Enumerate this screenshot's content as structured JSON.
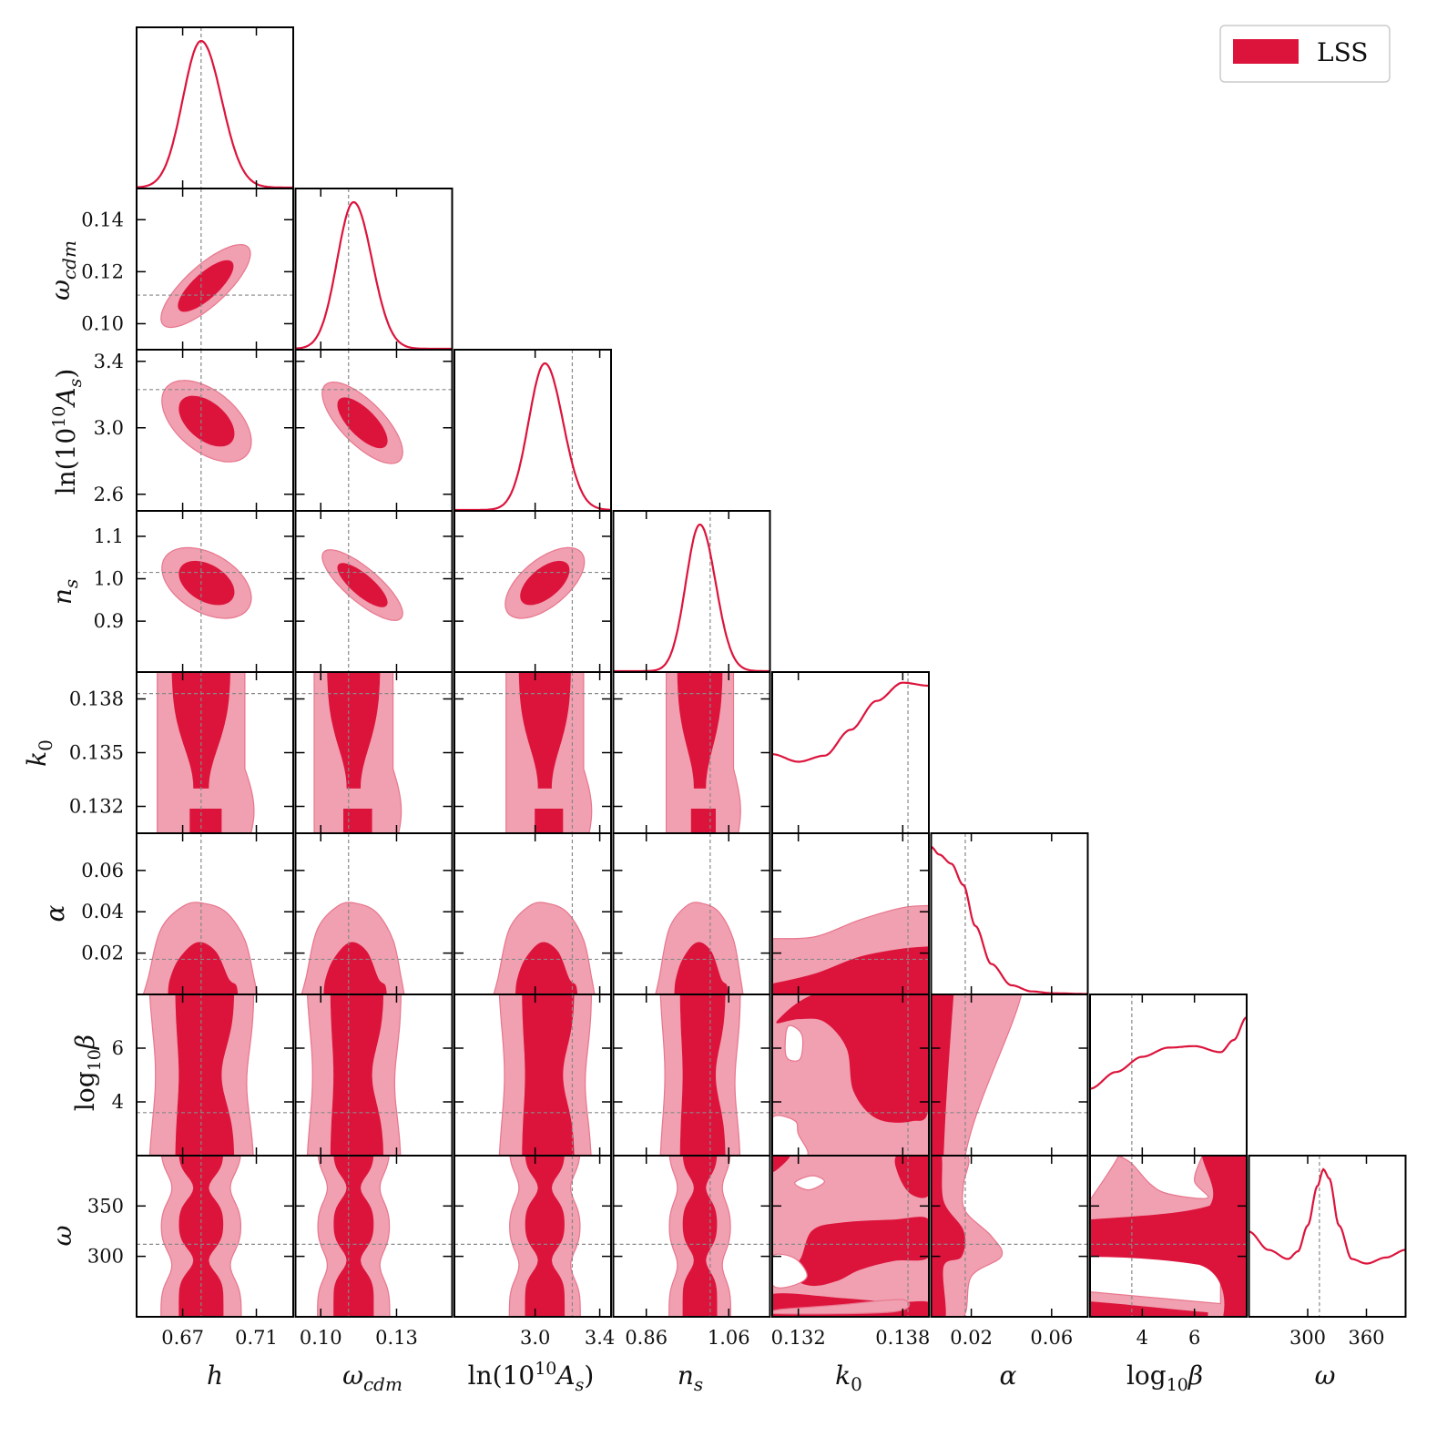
{
  "chart_data": {
    "type": "corner",
    "title": "",
    "legend": {
      "label": "LSS",
      "color": "#dc143c",
      "placement": "top-right"
    },
    "colors": {
      "c68": "#dc143c",
      "c95": "#f0a0b0",
      "c95_edge": "#e8768e",
      "line": "#dc143c",
      "ref": "#888888"
    },
    "parameters": [
      {
        "name": "h",
        "label": "h",
        "range": [
          0.645,
          0.73
        ],
        "ticks": [
          0.67,
          0.71
        ],
        "tick_labels": [
          "0.67",
          "0.71"
        ],
        "ref": 0.68,
        "mean": 0.68,
        "sd": 0.0099,
        "peak": 0.68
      },
      {
        "name": "omega_cdm",
        "label": "ω_cdm",
        "range": [
          0.09,
          0.152
        ],
        "ticks": [
          0.1,
          0.12,
          0.14
        ],
        "tick_labels": [
          "0.10",
          "0.12",
          "0.14"
        ],
        "bottom_ticks": [
          0.1,
          0.13
        ],
        "bottom_tick_labels": [
          "0.10",
          "0.13"
        ],
        "ref": 0.111,
        "mean": 0.113,
        "sd": 0.0065,
        "peak": 0.113
      },
      {
        "name": "ln10As",
        "label": "ln(10^10 A_s)",
        "range": [
          2.5,
          3.47
        ],
        "ticks": [
          2.6,
          3.0,
          3.4
        ],
        "tick_labels": [
          "2.6",
          "3.0",
          "3.4"
        ],
        "bottom_ticks": [
          3.0,
          3.4
        ],
        "bottom_tick_labels": [
          "3.0",
          "3.4"
        ],
        "ref": 3.23,
        "mean": 3.06,
        "sd": 0.1,
        "peak": 3.06
      },
      {
        "name": "n_s",
        "label": "n_s",
        "range": [
          0.78,
          1.16
        ],
        "ticks": [
          0.9,
          1.0,
          1.1
        ],
        "tick_labels": [
          "0.9",
          "1.0",
          "1.1"
        ],
        "bottom_ticks": [
          0.86,
          1.06
        ],
        "bottom_tick_labels": [
          "0.86",
          "1.06"
        ],
        "ref": 1.015,
        "mean": 0.99,
        "sd": 0.034,
        "peak": 0.99
      },
      {
        "name": "k0",
        "label": "k_0",
        "range": [
          0.1305,
          0.1395
        ],
        "ticks": [
          0.132,
          0.135,
          0.138
        ],
        "tick_labels": [
          "0.132",
          "0.135",
          "0.138"
        ],
        "bottom_ticks": [
          0.132,
          0.138
        ],
        "bottom_tick_labels": [
          "0.132",
          "0.138"
        ],
        "ref": 0.1383
      },
      {
        "name": "alpha",
        "label": "α",
        "range": [
          0.0,
          0.078
        ],
        "ticks": [
          0.02,
          0.04,
          0.06
        ],
        "tick_labels": [
          "0.02",
          "0.04",
          "0.06"
        ],
        "bottom_ticks": [
          0.02,
          0.06
        ],
        "bottom_tick_labels": [
          "0.02",
          "0.06"
        ],
        "ref": 0.017
      },
      {
        "name": "log10beta",
        "label": "log₁₀β",
        "range": [
          2.0,
          8.0
        ],
        "ticks": [
          4,
          6
        ],
        "tick_labels": [
          "4",
          "6"
        ],
        "ref": 3.6
      },
      {
        "name": "omega",
        "label": "ω",
        "range": [
          240,
          400
        ],
        "ticks": [
          300,
          350
        ],
        "tick_labels": [
          "300",
          "350"
        ],
        "bottom_ticks": [
          300,
          360
        ],
        "bottom_tick_labels": [
          "300",
          "360"
        ],
        "ref": 312
      }
    ],
    "marginals_1d": {
      "k0": {
        "x": [
          0.1305,
          0.132,
          0.1335,
          0.135,
          0.1365,
          0.138,
          0.1395
        ],
        "y": [
          0.52,
          0.47,
          0.51,
          0.68,
          0.87,
          0.99,
          0.97
        ]
      },
      "alpha": {
        "x": [
          0.0,
          0.004,
          0.01,
          0.016,
          0.022,
          0.03,
          0.04,
          0.05,
          0.06,
          0.078
        ],
        "y": [
          0.97,
          0.92,
          0.86,
          0.72,
          0.45,
          0.2,
          0.06,
          0.02,
          0.008,
          0.003
        ]
      },
      "log10beta": {
        "x": [
          2.0,
          3.0,
          4.0,
          5.0,
          6.0,
          7.0,
          7.5,
          8.0
        ],
        "y": [
          0.44,
          0.55,
          0.65,
          0.71,
          0.72,
          0.68,
          0.76,
          0.91
        ]
      },
      "omega": {
        "x": [
          240,
          260,
          280,
          290,
          300,
          310,
          316,
          322,
          332,
          345,
          360,
          380,
          400
        ],
        "y": [
          0.56,
          0.44,
          0.38,
          0.43,
          0.6,
          0.86,
          0.97,
          0.91,
          0.6,
          0.38,
          0.35,
          0.39,
          0.44
        ]
      }
    },
    "pairs_2d": {
      "omega_cdm|h": {
        "cx": 0.6825,
        "cy": 0.1145,
        "rho": 0.78
      },
      "ln10As|h": {
        "cx": 0.683,
        "cy": 3.04,
        "rho": -0.5
      },
      "ln10As|omega_cdm": {
        "cx": 0.1165,
        "cy": 3.03,
        "rho": -0.72
      },
      "n_s|h": {
        "cx": 0.683,
        "cy": 0.99,
        "rho": -0.42
      },
      "n_s|omega_cdm": {
        "cx": 0.1165,
        "cy": 0.985,
        "rho": -0.8
      },
      "n_s|ln10As": {
        "cx": 3.06,
        "cy": 0.99,
        "rho": 0.6
      },
      "alpha|h": {
        "cx": 0.68,
        "peak_y": 0.025,
        "outer_top": 0.044
      },
      "alpha|omega_cdm": {
        "cx": 0.113,
        "peak_y": 0.025,
        "outer_top": 0.044
      },
      "alpha|ln10As": {
        "cx": 3.06,
        "peak_y": 0.025,
        "outer_top": 0.044
      },
      "alpha|n_s": {
        "cx": 0.99,
        "peak_y": 0.025,
        "outer_top": 0.044
      },
      "alpha|k0": {
        "inner_top": [
          0.005,
          0.01,
          0.018,
          0.022,
          0.023
        ],
        "outer_top": [
          0.027,
          0.028,
          0.036,
          0.042,
          0.043
        ]
      },
      "log10beta|alpha": {
        "inner_right": 0.01,
        "outer_right_bottom": 0.018,
        "outer_right_top": 0.045
      }
    }
  },
  "axis_labels": {
    "h": "h",
    "omega_cdm_base": "ω",
    "omega_cdm_sub": "cdm",
    "lnAs_base": "ln(10",
    "lnAs_exp": "10",
    "lnAs_A": "A",
    "lnAs_sub": "s",
    "lnAs_close": ")",
    "ns_base": "n",
    "ns_sub": "s",
    "k0_base": "k",
    "k0_sub": "0",
    "alpha": "α",
    "beta_base": "log",
    "beta_sub": "10",
    "beta_tail": "β",
    "omega": "ω"
  }
}
